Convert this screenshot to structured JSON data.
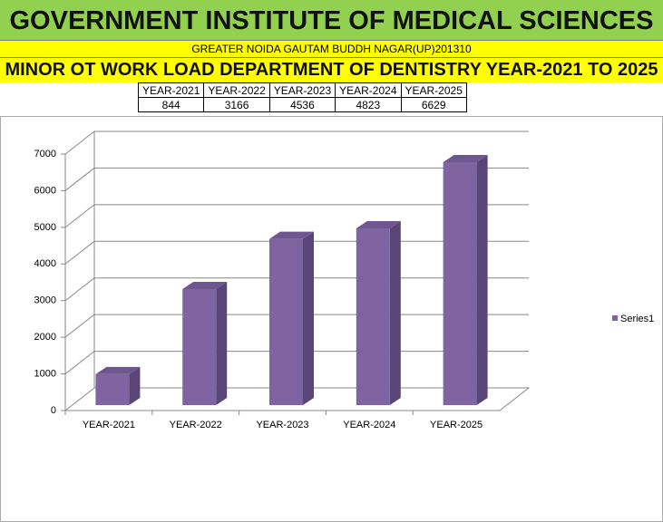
{
  "header": {
    "title": "GOVERNMENT INSTITUTE OF MEDICAL SCIENCES",
    "address": "GREATER NOIDA GAUTAM BUDDH NAGAR(UP)201310",
    "subtitle": "MINOR OT WORK LOAD DEPARTMENT OF DENTISTRY YEAR-2021 TO 2025"
  },
  "table": {
    "header": [
      "YEAR-2021",
      "YEAR-2022",
      "YEAR-2023",
      "YEAR-2024",
      "YEAR-2025"
    ],
    "rows": [
      [
        "844",
        "3166",
        "4536",
        "4823",
        "6629"
      ]
    ]
  },
  "chart_data": {
    "type": "bar3d",
    "categories": [
      "YEAR-2021",
      "YEAR-2022",
      "YEAR-2023",
      "YEAR-2024",
      "YEAR-2025"
    ],
    "series": [
      {
        "name": "Series1",
        "color": "#8064a2",
        "values": [
          844,
          3166,
          4536,
          4823,
          6629
        ]
      }
    ],
    "ylim": [
      0,
      7000
    ],
    "yticks": [
      0,
      1000,
      2000,
      3000,
      4000,
      5000,
      6000,
      7000
    ],
    "grid": true,
    "legend": "right"
  }
}
